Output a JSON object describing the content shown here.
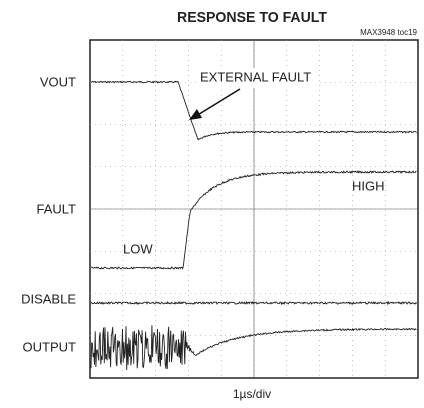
{
  "header": {
    "title": "RESPONSE TO FAULT",
    "note": "MAX3948 toc19"
  },
  "channels": [
    "VOUT",
    "FAULT",
    "DISABLE",
    "OUTPUT"
  ],
  "annotations": {
    "fault": "EXTERNAL FAULT",
    "high": "HIGH",
    "low": "LOW"
  },
  "x_label": "1µs/div"
}
